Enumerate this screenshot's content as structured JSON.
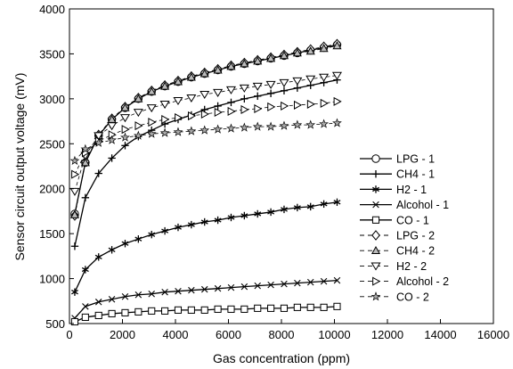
{
  "chart_data": {
    "type": "line",
    "xlabel": "Gas concentration (ppm)",
    "ylabel": "Sensor circuit output voltage (mV)",
    "xlim": [
      0,
      16000
    ],
    "ylim": [
      500,
      4000
    ],
    "xticks": [
      0,
      2000,
      4000,
      6000,
      8000,
      10000,
      12000,
      14000,
      16000
    ],
    "yticks": [
      500,
      1000,
      1500,
      2000,
      2500,
      3000,
      3500,
      4000
    ],
    "grid": false,
    "legend_position": "right",
    "x": [
      200,
      600,
      1100,
      1600,
      2100,
      2600,
      3100,
      3600,
      4100,
      4600,
      5100,
      5600,
      6100,
      6600,
      7100,
      7600,
      8100,
      8600,
      9100,
      9600,
      10100
    ],
    "series": [
      {
        "name": "LPG - 1",
        "marker": "circle",
        "dashed": false,
        "values": [
          1720,
          2290,
          2590,
          2770,
          2900,
          3000,
          3080,
          3140,
          3190,
          3240,
          3280,
          3320,
          3360,
          3390,
          3420,
          3450,
          3480,
          3510,
          3540,
          3570,
          3600
        ]
      },
      {
        "name": "CH4 - 1",
        "marker": "plus",
        "dashed": false,
        "values": [
          1360,
          1900,
          2170,
          2340,
          2480,
          2580,
          2650,
          2720,
          2770,
          2820,
          2880,
          2920,
          2960,
          3000,
          3030,
          3060,
          3090,
          3120,
          3150,
          3180,
          3210
        ]
      },
      {
        "name": "H2 - 1",
        "marker": "asterisk",
        "dashed": false,
        "values": [
          850,
          1100,
          1240,
          1320,
          1390,
          1440,
          1490,
          1530,
          1570,
          1600,
          1630,
          1650,
          1680,
          1700,
          1720,
          1740,
          1770,
          1790,
          1800,
          1830,
          1850
        ]
      },
      {
        "name": "Alcohol - 1",
        "marker": "x",
        "dashed": false,
        "values": [
          560,
          690,
          740,
          770,
          800,
          820,
          830,
          850,
          860,
          870,
          880,
          890,
          900,
          910,
          920,
          930,
          940,
          950,
          960,
          970,
          980
        ]
      },
      {
        "name": "CO - 1",
        "marker": "square",
        "dashed": false,
        "values": [
          520,
          570,
          590,
          610,
          620,
          630,
          640,
          640,
          650,
          650,
          650,
          660,
          660,
          660,
          670,
          670,
          670,
          680,
          680,
          680,
          690
        ]
      },
      {
        "name": "LPG - 2",
        "marker": "diamond",
        "dashed": true,
        "values": [
          1700,
          2300,
          2600,
          2780,
          2910,
          3010,
          3090,
          3150,
          3200,
          3250,
          3290,
          3330,
          3370,
          3400,
          3430,
          3460,
          3490,
          3520,
          3550,
          3580,
          3610
        ]
      },
      {
        "name": "CH4 - 2",
        "marker": "triangle-up",
        "dashed": true,
        "values": [
          1710,
          2290,
          2590,
          2770,
          2900,
          3000,
          3080,
          3140,
          3190,
          3240,
          3280,
          3320,
          3360,
          3390,
          3420,
          3450,
          3480,
          3510,
          3530,
          3560,
          3590
        ]
      },
      {
        "name": "H2 - 2",
        "marker": "triangle-down",
        "dashed": true,
        "values": [
          1970,
          2370,
          2590,
          2700,
          2790,
          2850,
          2900,
          2940,
          2980,
          3010,
          3050,
          3070,
          3100,
          3120,
          3140,
          3160,
          3180,
          3200,
          3220,
          3240,
          3260
        ]
      },
      {
        "name": "Alcohol - 2",
        "marker": "triangle-right",
        "dashed": true,
        "values": [
          2160,
          2400,
          2530,
          2600,
          2660,
          2700,
          2740,
          2770,
          2790,
          2810,
          2830,
          2850,
          2860,
          2880,
          2890,
          2910,
          2920,
          2930,
          2940,
          2950,
          2970
        ]
      },
      {
        "name": "CO - 2",
        "marker": "star",
        "dashed": true,
        "values": [
          2310,
          2440,
          2510,
          2540,
          2570,
          2590,
          2610,
          2620,
          2630,
          2640,
          2650,
          2660,
          2670,
          2680,
          2690,
          2690,
          2700,
          2710,
          2710,
          2720,
          2730
        ]
      }
    ]
  }
}
